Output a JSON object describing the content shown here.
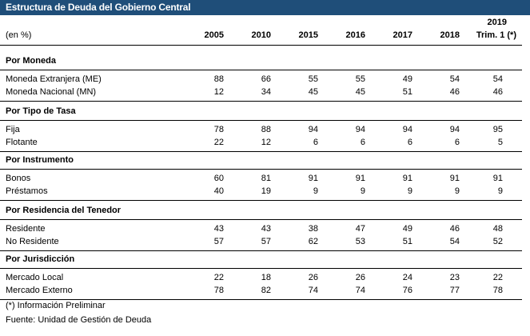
{
  "title": "Estructura de Deuda del Gobierno Central",
  "unit_label": "(en %)",
  "columns": [
    "2005",
    "2010",
    "2015",
    "2016",
    "2017",
    "2018"
  ],
  "last_column": {
    "year": "2019",
    "sub": "Trim. 1 (*)"
  },
  "sections": [
    {
      "name": "Por Moneda",
      "rows": [
        {
          "label": "Moneda Extranjera (ME)",
          "values": [
            "88",
            "66",
            "55",
            "55",
            "49",
            "54",
            "54"
          ]
        },
        {
          "label": "Moneda Nacional (MN)",
          "values": [
            "12",
            "34",
            "45",
            "45",
            "51",
            "46",
            "46"
          ]
        }
      ]
    },
    {
      "name": "Por Tipo de Tasa",
      "rows": [
        {
          "label": "Fija",
          "values": [
            "78",
            "88",
            "94",
            "94",
            "94",
            "94",
            "95"
          ]
        },
        {
          "label": "Flotante",
          "values": [
            "22",
            "12",
            "6",
            "6",
            "6",
            "6",
            "5"
          ]
        }
      ]
    },
    {
      "name": "Por Instrumento",
      "rows": [
        {
          "label": "Bonos",
          "values": [
            "60",
            "81",
            "91",
            "91",
            "91",
            "91",
            "91"
          ]
        },
        {
          "label": "Préstamos",
          "values": [
            "40",
            "19",
            "9",
            "9",
            "9",
            "9",
            "9"
          ]
        }
      ]
    },
    {
      "name": "Por Residencia del Tenedor",
      "rows": [
        {
          "label": "Residente",
          "values": [
            "43",
            "43",
            "38",
            "47",
            "49",
            "46",
            "48"
          ]
        },
        {
          "label": "No Residente",
          "values": [
            "57",
            "57",
            "62",
            "53",
            "51",
            "54",
            "52"
          ]
        }
      ]
    },
    {
      "name": "Por Jurisdicción",
      "rows": [
        {
          "label": "Mercado Local",
          "values": [
            "22",
            "18",
            "26",
            "26",
            "24",
            "23",
            "22"
          ]
        },
        {
          "label": "Mercado Externo",
          "values": [
            "78",
            "82",
            "74",
            "74",
            "76",
            "77",
            "78"
          ]
        }
      ]
    }
  ],
  "notes": [
    "(*) Información Preliminar",
    "Fuente: Unidad de Gestión de Deuda"
  ],
  "colors": {
    "title_bg": "#1f4e79",
    "title_text": "#ffffff"
  }
}
